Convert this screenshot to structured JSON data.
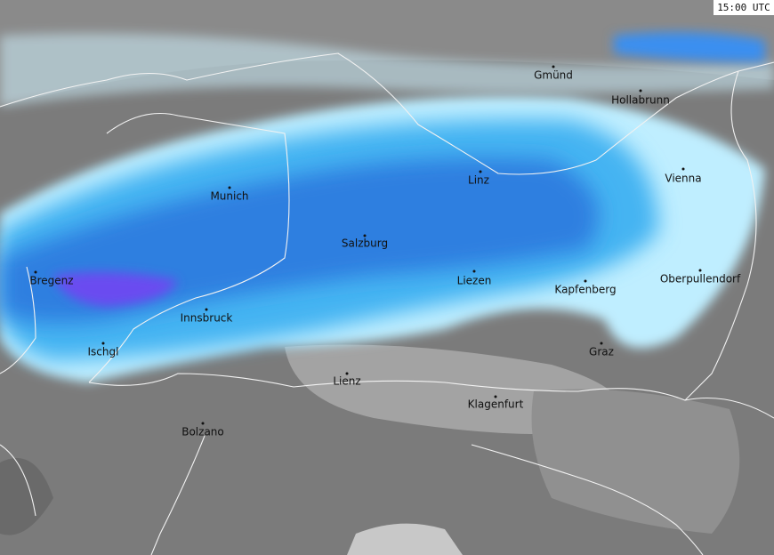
{
  "timestamp": "15:00 UTC",
  "cities": [
    "Gmünd",
    "Hollabrunn",
    "Linz",
    "Vienna",
    "Munich",
    "Salzburg",
    "Bregenz",
    "Liezen",
    "Oberpullendorf",
    "Kapfenberg",
    "Innsbruck",
    "Ischgl",
    "Graz",
    "Lienz",
    "Klagenfurt",
    "Bolzano"
  ]
}
